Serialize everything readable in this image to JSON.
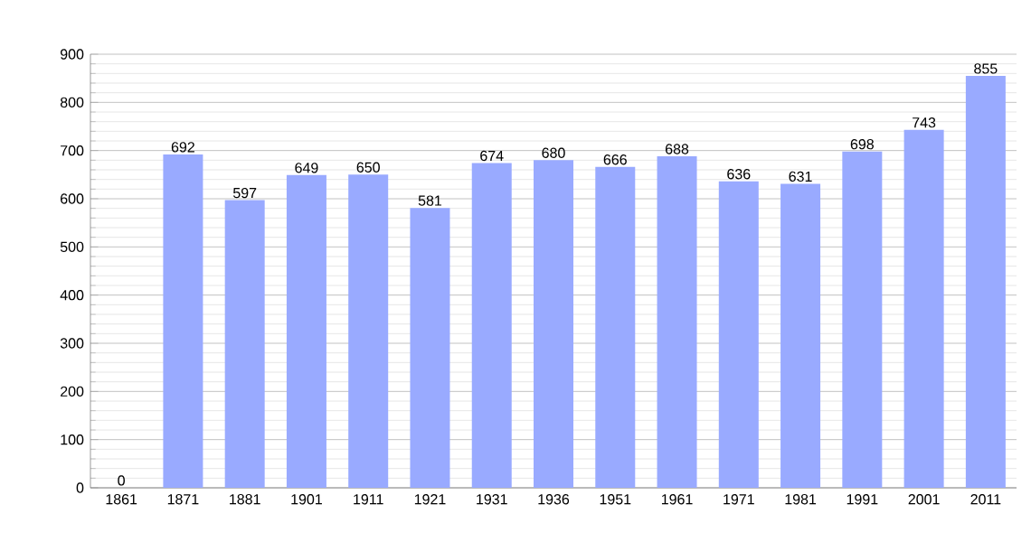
{
  "chart_data": {
    "type": "bar",
    "categories": [
      "1861",
      "1871",
      "1881",
      "1901",
      "1911",
      "1921",
      "1931",
      "1936",
      "1951",
      "1961",
      "1971",
      "1981",
      "1991",
      "2001",
      "2011"
    ],
    "values": [
      0,
      692,
      597,
      649,
      650,
      581,
      674,
      680,
      666,
      688,
      636,
      631,
      698,
      743,
      855
    ],
    "color": "#99aaff",
    "ylim": [
      0,
      900
    ],
    "yticks": [
      0,
      100,
      200,
      300,
      400,
      500,
      600,
      700,
      800,
      900
    ],
    "grid": "y",
    "data_labels": true
  }
}
